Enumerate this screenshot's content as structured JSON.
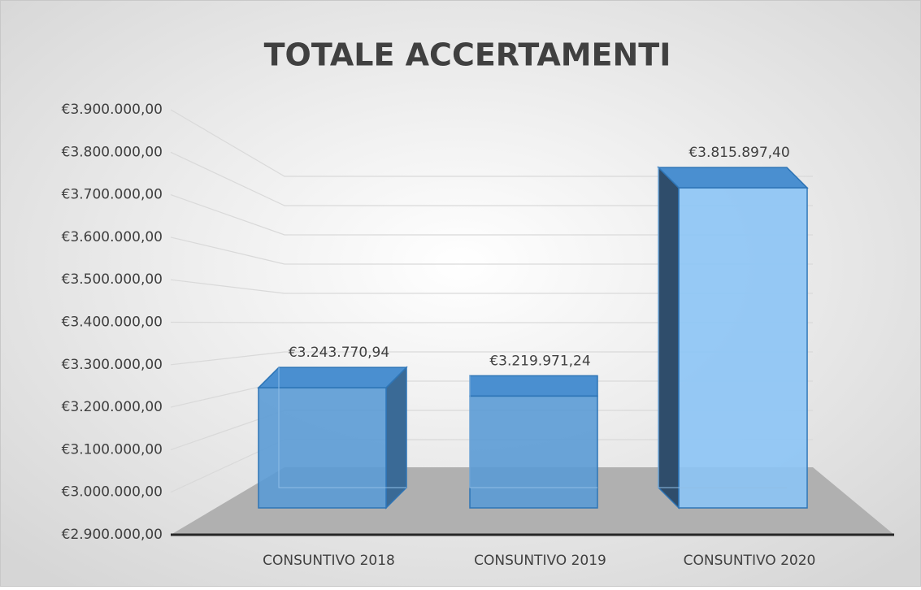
{
  "chart_data": {
    "type": "bar3d",
    "title": "TOTALE ACCERTAMENTI",
    "categories": [
      "CONSUNTIVO 2018",
      "CONSUNTIVO 2019",
      "CONSUNTIVO 2020"
    ],
    "values": [
      3243770.94,
      3219971.24,
      3815897.4
    ],
    "value_labels": [
      "€3.243.770,94",
      "€3.219.971,24",
      "€3.815.897,40"
    ],
    "color": "#5b9bd5",
    "ylim": [
      2900000,
      3900000
    ],
    "yticks": [
      {
        "value": 2900000,
        "label": "€2.900.000,00"
      },
      {
        "value": 3000000,
        "label": "€3.000.000,00"
      },
      {
        "value": 3100000,
        "label": "€3.100.000,00"
      },
      {
        "value": 3200000,
        "label": "€3.200.000,00"
      },
      {
        "value": 3300000,
        "label": "€3.300.000,00"
      },
      {
        "value": 3400000,
        "label": "€3.400.000,00"
      },
      {
        "value": 3500000,
        "label": "€3.500.000,00"
      },
      {
        "value": 3600000,
        "label": "€3.600.000,00"
      },
      {
        "value": 3700000,
        "label": "€3.700.000,00"
      },
      {
        "value": 3800000,
        "label": "€3.800.000,00"
      },
      {
        "value": 3900000,
        "label": "€3.900.000,00"
      }
    ],
    "grid": true
  }
}
